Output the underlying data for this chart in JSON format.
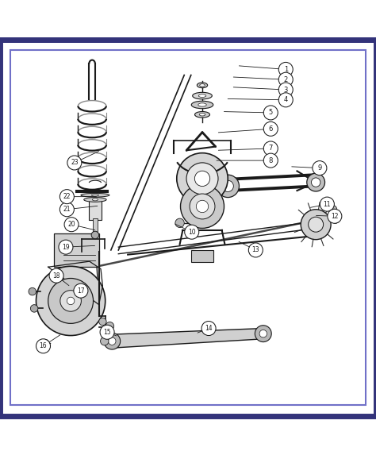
{
  "background_color": "#ffffff",
  "outer_border_color": "#33337a",
  "inner_border_color": "#7070c8",
  "outer_border_lw": 5,
  "inner_border_lw": 1.5,
  "figsize": [
    4.74,
    5.73
  ],
  "dpi": 100,
  "line_color": "#1a1a1a",
  "callouts": [
    [
      1,
      0.76,
      0.92,
      0.63,
      0.93
    ],
    [
      2,
      0.76,
      0.893,
      0.615,
      0.9
    ],
    [
      3,
      0.76,
      0.866,
      0.615,
      0.873
    ],
    [
      4,
      0.76,
      0.839,
      0.6,
      0.842
    ],
    [
      5,
      0.72,
      0.805,
      0.59,
      0.808
    ],
    [
      6,
      0.72,
      0.762,
      0.575,
      0.752
    ],
    [
      7,
      0.72,
      0.71,
      0.575,
      0.705
    ],
    [
      8,
      0.72,
      0.678,
      0.57,
      0.678
    ],
    [
      9,
      0.85,
      0.658,
      0.77,
      0.662
    ],
    [
      10,
      0.51,
      0.488,
      0.46,
      0.512
    ],
    [
      11,
      0.87,
      0.562,
      0.82,
      0.552
    ],
    [
      12,
      0.89,
      0.53,
      0.835,
      0.532
    ],
    [
      13,
      0.68,
      0.44,
      0.63,
      0.465
    ],
    [
      14,
      0.555,
      0.232,
      0.52,
      0.218
    ],
    [
      15,
      0.285,
      0.222,
      0.315,
      0.21
    ],
    [
      16,
      0.115,
      0.185,
      0.165,
      0.218
    ],
    [
      17,
      0.215,
      0.332,
      0.228,
      0.312
    ],
    [
      18,
      0.15,
      0.372,
      0.188,
      0.342
    ],
    [
      19,
      0.175,
      0.448,
      0.258,
      0.452
    ],
    [
      20,
      0.19,
      0.508,
      0.258,
      0.492
    ],
    [
      21,
      0.178,
      0.548,
      0.265,
      0.558
    ],
    [
      22,
      0.178,
      0.582,
      0.262,
      0.582
    ],
    [
      23,
      0.198,
      0.672,
      0.268,
      0.705
    ]
  ]
}
